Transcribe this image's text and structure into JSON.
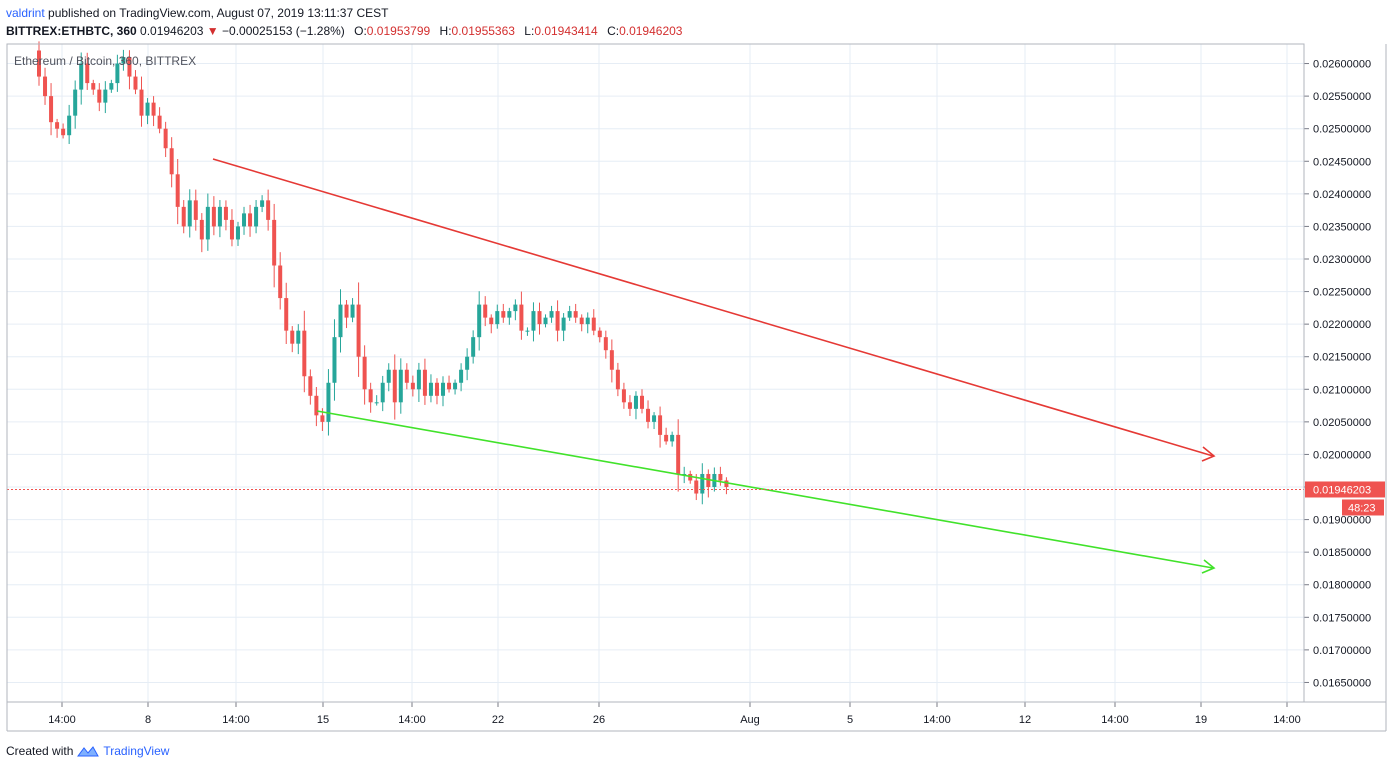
{
  "header": {
    "user": "valdrint",
    "published": "published on TradingView.com, August 07, 2019 13:11:37 CEST",
    "symbol": "BITTREX:ETHBTC, 360",
    "last": "0.01946203",
    "down_arrow": "▼",
    "change": "−0.00025153 (−1.28%)",
    "o_label": "O:",
    "o_value": "0.01953799",
    "h_label": "H:",
    "h_value": "0.01955363",
    "l_label": "L:",
    "l_value": "0.01943414",
    "c_label": "C:",
    "c_value": "0.01946203"
  },
  "footer": {
    "created_with": "Created with",
    "brand": "TradingView"
  },
  "colors": {
    "up": "#26a69a",
    "down": "#ef5350",
    "resistance": "#e53935",
    "support": "#41e22a",
    "grid": "#e6edf5",
    "price_line": "#ef5350"
  },
  "chart_data": {
    "type": "candlestick",
    "title": "Ethereum / Bitcoin, 360, BITTREX",
    "ylim": [
      0.0162,
      0.0263
    ],
    "y_ticks": [
      "0.02600000",
      "0.02550000",
      "0.02500000",
      "0.02450000",
      "0.02400000",
      "0.02350000",
      "0.02300000",
      "0.02250000",
      "0.02200000",
      "0.02150000",
      "0.02100000",
      "0.02050000",
      "0.02000000",
      "0.01950000",
      "0.01900000",
      "0.01850000",
      "0.01800000",
      "0.01750000",
      "0.01700000",
      "0.01650000"
    ],
    "x_ticks": [
      "14:00",
      "8",
      "14:00",
      "15",
      "14:00",
      "22",
      "26",
      "Aug",
      "5",
      "14:00",
      "12",
      "14:00",
      "19",
      "14:00"
    ],
    "current_price": "0.01946203",
    "countdown": "48:23",
    "grid": true,
    "closes": [
      0.0258,
      0.0255,
      0.0251,
      0.025,
      0.0249,
      0.0252,
      0.0256,
      0.026,
      0.0257,
      0.0256,
      0.0254,
      0.0256,
      0.0257,
      0.026,
      0.0261,
      0.0258,
      0.0256,
      0.0252,
      0.0254,
      0.0252,
      0.025,
      0.0247,
      0.0243,
      0.0238,
      0.0235,
      0.0239,
      0.0236,
      0.0233,
      0.0238,
      0.0235,
      0.0238,
      0.0236,
      0.0233,
      0.0235,
      0.0237,
      0.0235,
      0.0238,
      0.0239,
      0.0236,
      0.0229,
      0.0224,
      0.0219,
      0.0217,
      0.0219,
      0.0212,
      0.0209,
      0.0206,
      0.0205,
      0.0211,
      0.0218,
      0.0223,
      0.0221,
      0.0223,
      0.0215,
      0.021,
      0.0208,
      0.0208,
      0.0211,
      0.0213,
      0.0208,
      0.0213,
      0.0211,
      0.021,
      0.0213,
      0.0209,
      0.0211,
      0.0209,
      0.0211,
      0.021,
      0.0211,
      0.0213,
      0.0215,
      0.0218,
      0.0223,
      0.0221,
      0.022,
      0.0222,
      0.0221,
      0.0222,
      0.0223,
      0.0219,
      0.0219,
      0.0222,
      0.022,
      0.0221,
      0.0222,
      0.0219,
      0.0221,
      0.0222,
      0.0221,
      0.022,
      0.0221,
      0.0219,
      0.0218,
      0.0216,
      0.0213,
      0.021,
      0.0208,
      0.0207,
      0.0209,
      0.0207,
      0.0205,
      0.0206,
      0.0203,
      0.0202,
      0.0203,
      0.0197,
      0.0197,
      0.0196,
      0.0194,
      0.0197,
      0.0195,
      0.0197,
      0.0196,
      0.0195
    ]
  }
}
